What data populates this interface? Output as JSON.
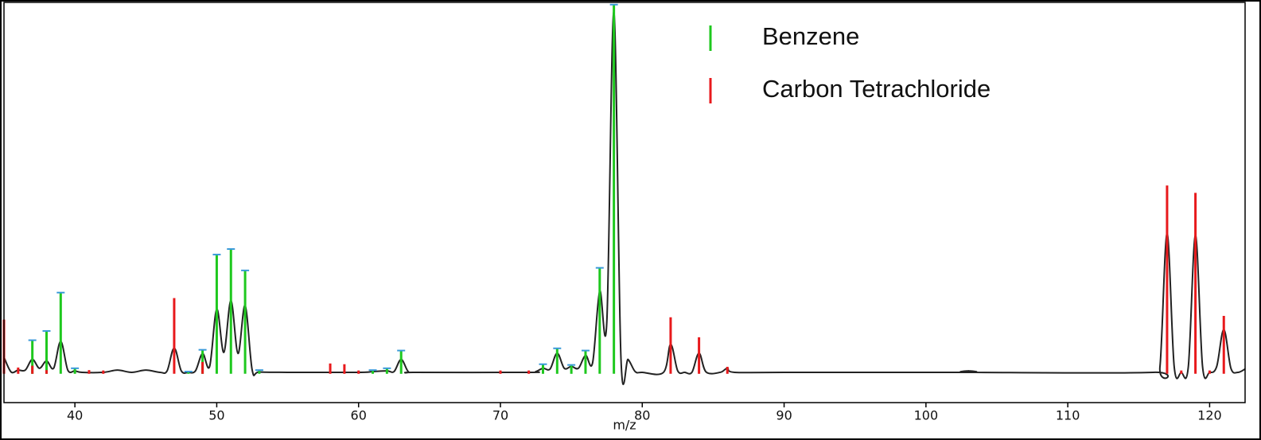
{
  "chart_data": {
    "type": "stem",
    "xlabel": "m/z",
    "xlim": [
      35,
      122.5
    ],
    "xticks": [
      40,
      50,
      60,
      70,
      80,
      90,
      100,
      110,
      120
    ],
    "ylim": [
      -7.8,
      100.6
    ],
    "legend": "upper right",
    "series": [
      {
        "name": "Benzene",
        "color": "#1ec81e",
        "cap_color": "#3a9ad9",
        "x": [
          37,
          38,
          39,
          40,
          48,
          49,
          50,
          51,
          52,
          53,
          61,
          62,
          63,
          73,
          74,
          75,
          76,
          77,
          78
        ],
        "values": [
          9.1,
          11.6,
          22,
          1.5,
          0.6,
          6.5,
          32.3,
          33.8,
          28,
          1,
          1,
          1.5,
          6.3,
          2.6,
          6.9,
          2.4,
          6.3,
          28.7,
          100
        ]
      },
      {
        "name": "Carbon Tetrachloride",
        "color": "#e8191c",
        "x": [
          35,
          36,
          37,
          38,
          41,
          42,
          47,
          49,
          58,
          59,
          60,
          70,
          72,
          82,
          84,
          86,
          117,
          118,
          119,
          120,
          121
        ],
        "values": [
          14.7,
          1.7,
          2.2,
          1,
          1,
          0.9,
          20.5,
          3.2,
          2.8,
          2.6,
          0.9,
          0.9,
          0.9,
          15.3,
          9.9,
          1.9,
          51,
          0.9,
          49,
          0.9,
          15.7
        ]
      }
    ],
    "curve": {
      "color": "#222222",
      "x": [
        35,
        35.5,
        36,
        36.5,
        37,
        37.5,
        38,
        38.5,
        39,
        39.5,
        40,
        40.5,
        42,
        43,
        44,
        45,
        46,
        46.5,
        47,
        47.5,
        48,
        48.5,
        49,
        49.5,
        50,
        50.5,
        51,
        51.5,
        52,
        52.5,
        53,
        55,
        60,
        61,
        62,
        62.5,
        63,
        63.5,
        64,
        72,
        72.5,
        73,
        73.5,
        74,
        74.5,
        75,
        75.5,
        76,
        76.5,
        77,
        77.5,
        78,
        78.5,
        79,
        79.5,
        80,
        81.5,
        82,
        82.5,
        83,
        83.5,
        84,
        84.5,
        85.5,
        86,
        86.5,
        90,
        102.5,
        103,
        103.5,
        116,
        116.5,
        117,
        117.5,
        118,
        118.5,
        119,
        119.5,
        120,
        120.5,
        121,
        121.5,
        122,
        122.5
      ],
      "values": [
        4.5,
        0.5,
        1,
        1,
        3.9,
        1.5,
        3.5,
        1.5,
        8.8,
        1,
        0.8,
        0.4,
        0.4,
        1,
        0.4,
        1,
        0.4,
        0.8,
        7,
        0.8,
        0.4,
        0.8,
        5.5,
        2,
        17.5,
        5.8,
        19.8,
        5.5,
        18.5,
        1,
        0.5,
        0.4,
        0.4,
        0.6,
        0.8,
        0.6,
        3.9,
        0.6,
        0.4,
        0.4,
        0.6,
        1.5,
        1.3,
        5.6,
        1.5,
        2,
        1.5,
        5,
        3,
        22.4,
        14,
        98,
        4,
        3.9,
        0.6,
        0.4,
        0.4,
        8,
        0.8,
        0.4,
        0.4,
        5.6,
        0.5,
        0.4,
        1.5,
        0.4,
        0.4,
        0.4,
        0.8,
        0.4,
        0.4,
        2,
        38,
        2,
        0.4,
        2,
        37.5,
        2,
        0.4,
        2,
        12,
        1.5,
        0.4,
        1.3
      ]
    }
  }
}
